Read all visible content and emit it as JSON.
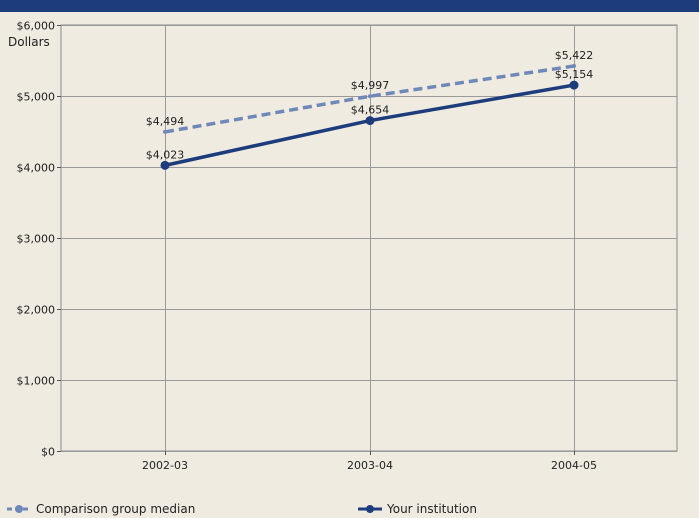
{
  "chart_data": {
    "type": "line",
    "ylabel": "Dollars",
    "xlabel": "",
    "categories": [
      "2002-03",
      "2003-04",
      "2004-05"
    ],
    "ylim": [
      0,
      6000
    ],
    "yticks": [
      0,
      1000,
      2000,
      3000,
      4000,
      5000,
      6000
    ],
    "ytick_labels": [
      "$0",
      "$1,000",
      "$2,000",
      "$3,000",
      "$4,000",
      "$5,000",
      "$6,000"
    ],
    "grid": true,
    "legend_placement": "bottom",
    "series": [
      {
        "name": "Comparison group median",
        "values": [
          4494,
          4997,
          5422
        ],
        "labels": [
          "$4,494",
          "$4,997",
          "$5,422"
        ],
        "color": "#7088b8",
        "style": "dashed"
      },
      {
        "name": "Your institution",
        "values": [
          4023,
          4654,
          5154
        ],
        "labels": [
          "$4,023",
          "$4,654",
          "$5,154"
        ],
        "color": "#1c3c7c",
        "style": "solid"
      }
    ]
  },
  "colors": {
    "header_bar": "#1c3c7c",
    "background": "#efebe1",
    "grid": "#9a9a9a"
  }
}
